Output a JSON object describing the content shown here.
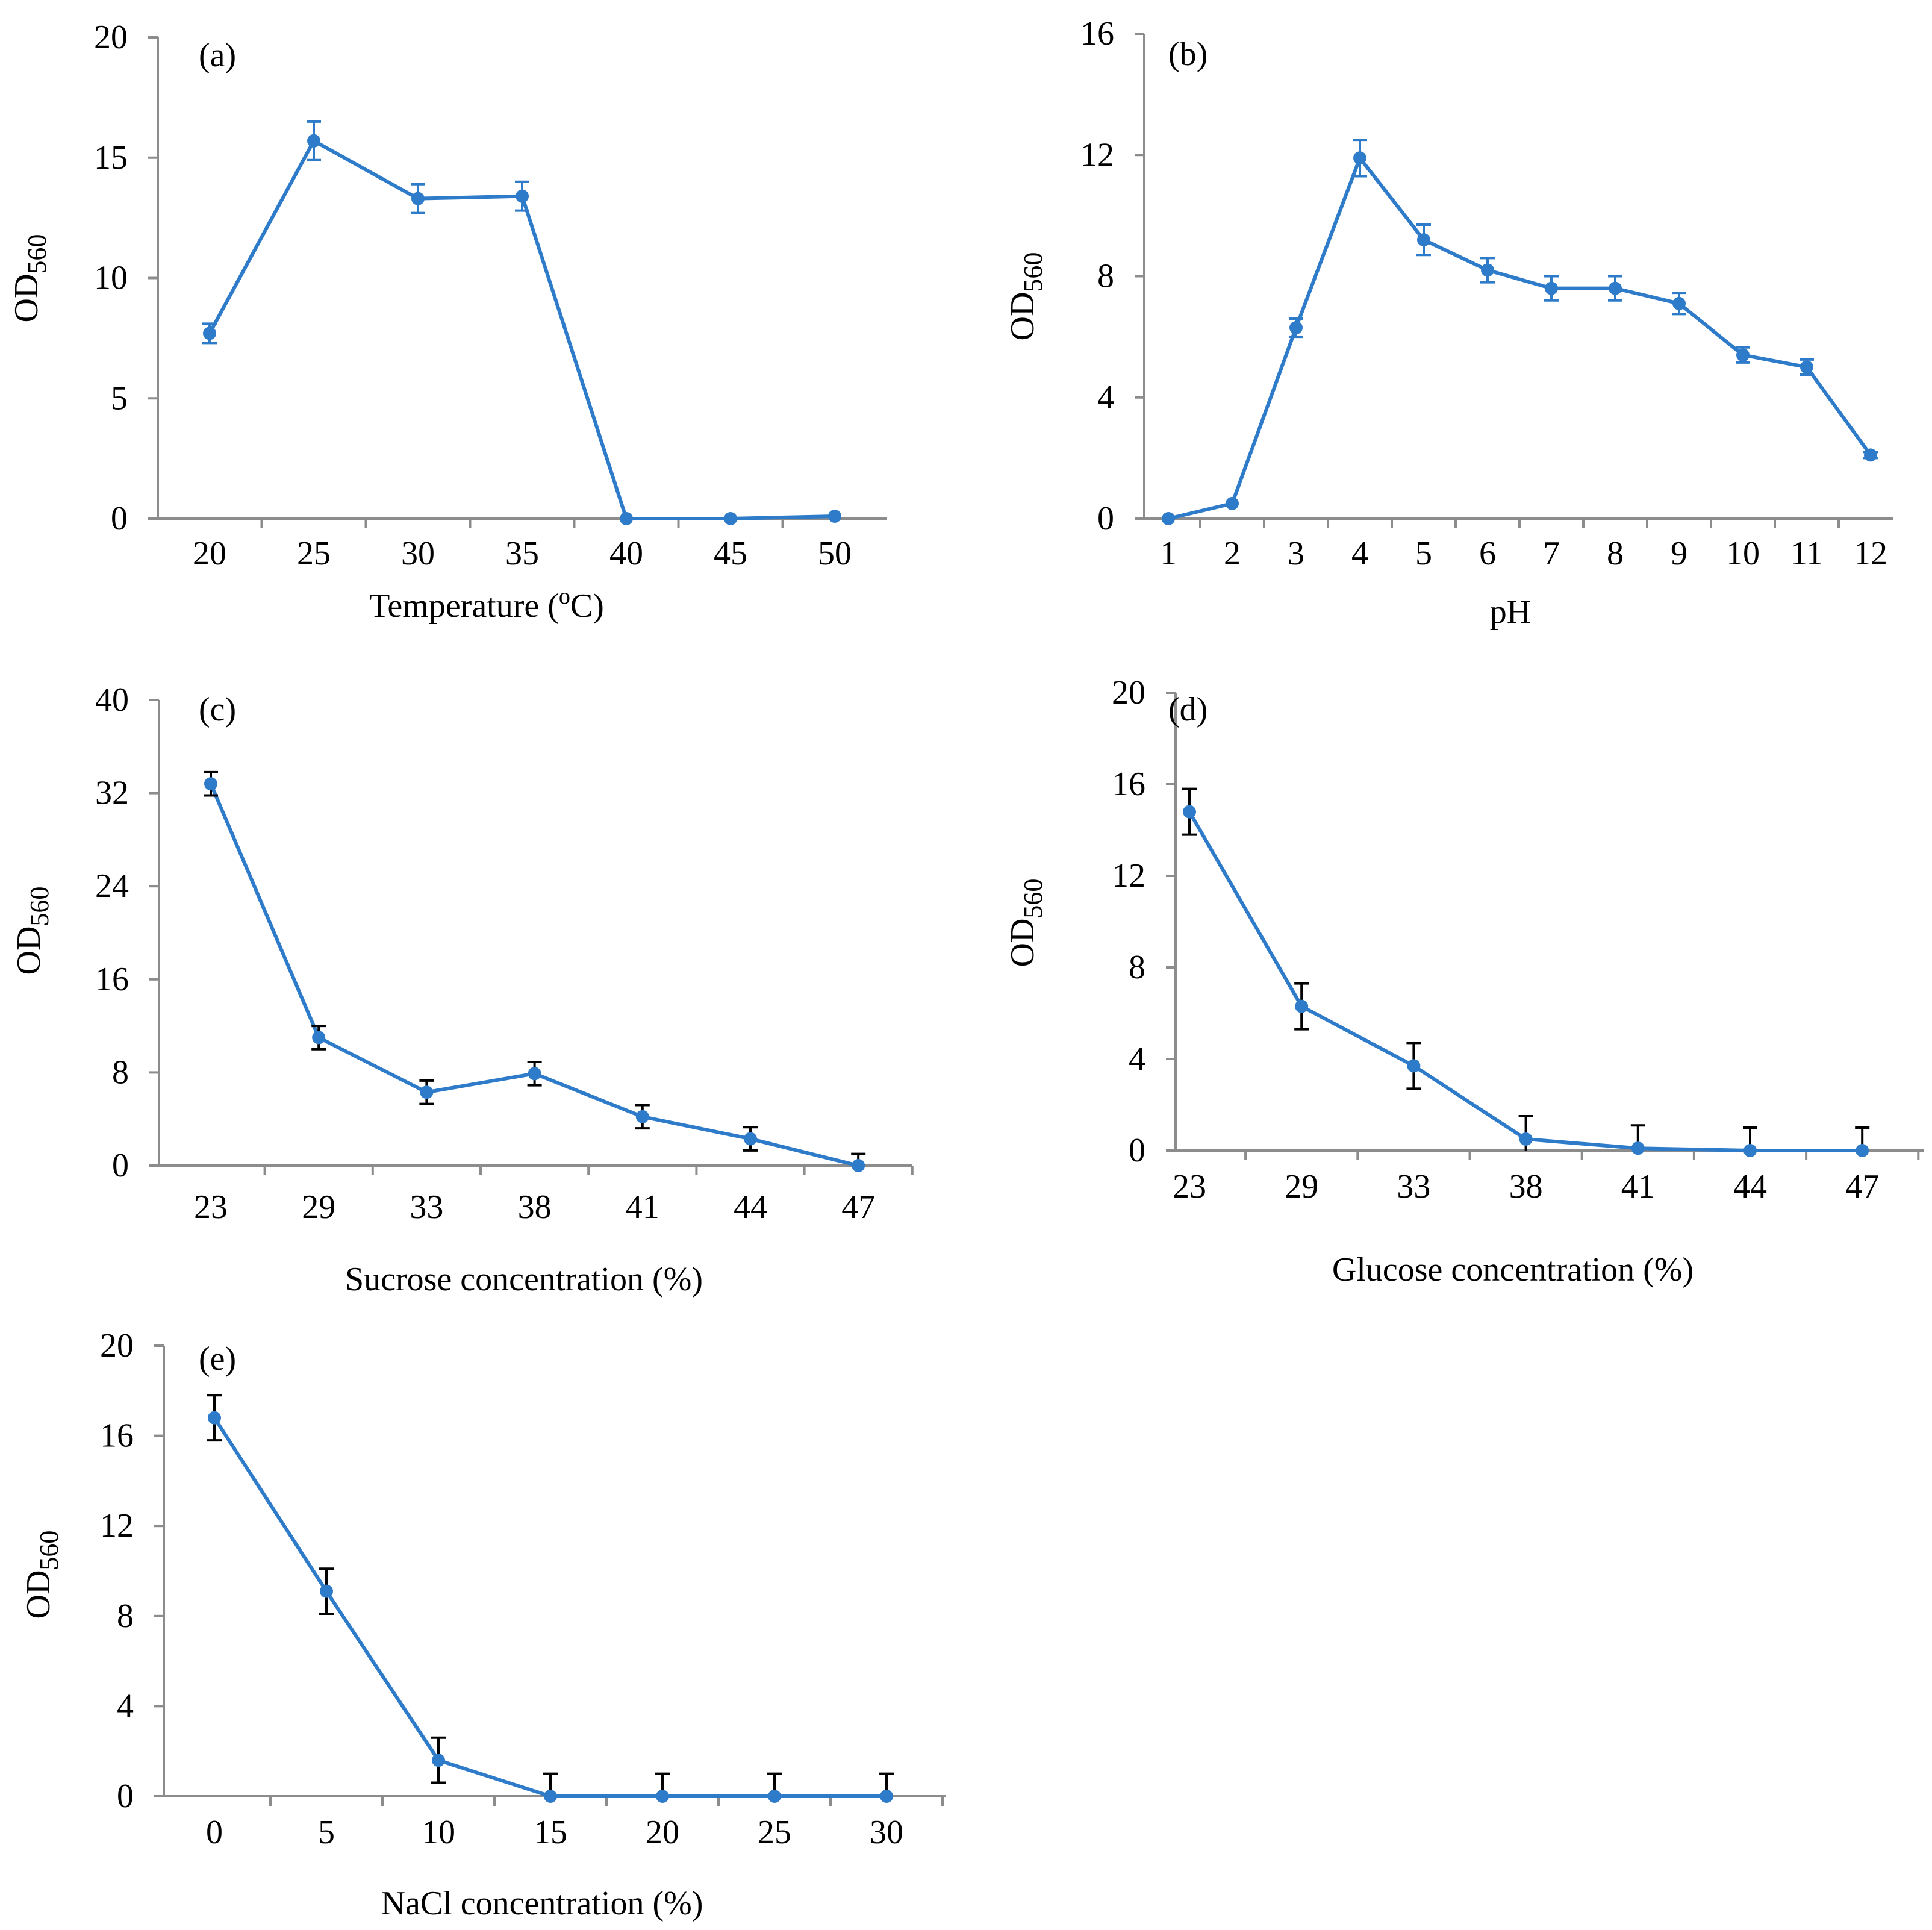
{
  "colors": {
    "series": "#2e7bc9",
    "axis": "#8c8c8c",
    "error_bar": "#000000"
  },
  "chart_data": [
    {
      "type": "line",
      "panel_label": "(a)",
      "xlabel": "Temperature (",
      "xlabel_sup": "o",
      "xlabel_tail": "C)",
      "ylabel": "OD",
      "ylabel_sub": "560",
      "categories": [
        "20",
        "25",
        "30",
        "35",
        "40",
        "45",
        "50"
      ],
      "values": [
        7.7,
        15.7,
        13.3,
        13.4,
        0.0,
        0.0,
        0.1
      ],
      "errors": [
        0.4,
        0.8,
        0.6,
        0.6,
        0,
        0,
        0
      ],
      "error_color": "#2e7bc9",
      "ylim": [
        0,
        20
      ],
      "yticks": [
        0,
        5,
        10,
        15,
        20
      ],
      "grid": false,
      "legend": "none"
    },
    {
      "type": "line",
      "panel_label": "(b)",
      "xlabel": "pH",
      "ylabel": "OD",
      "ylabel_sub": "560",
      "categories": [
        "1",
        "2",
        "3",
        "4",
        "5",
        "6",
        "7",
        "8",
        "9",
        "10",
        "11",
        "12"
      ],
      "values": [
        0.0,
        0.5,
        6.3,
        11.9,
        9.2,
        8.2,
        7.6,
        7.6,
        7.1,
        5.4,
        5.0,
        2.1
      ],
      "errors": [
        0,
        0,
        0.3,
        0.6,
        0.5,
        0.4,
        0.4,
        0.4,
        0.35,
        0.25,
        0.25,
        0.1
      ],
      "error_color": "#2e7bc9",
      "ylim": [
        0,
        16
      ],
      "yticks": [
        0,
        4,
        8,
        12,
        16
      ],
      "grid": false,
      "legend": "none"
    },
    {
      "type": "line",
      "panel_label": "(c)",
      "xlabel": "Sucrose concentration (%)",
      "ylabel": "OD",
      "ylabel_sub": "560",
      "categories": [
        "23",
        "29",
        "33",
        "38",
        "41",
        "44",
        "47"
      ],
      "values": [
        32.8,
        11.0,
        6.3,
        7.9,
        4.2,
        2.3,
        0.0
      ],
      "errors": [
        1.0,
        1.0,
        1.0,
        1.0,
        1.0,
        1.0,
        1.0
      ],
      "error_color": "#000000",
      "ylim": [
        0,
        40
      ],
      "yticks": [
        0,
        8,
        16,
        24,
        32,
        40
      ],
      "grid": false,
      "legend": "none"
    },
    {
      "type": "line",
      "panel_label": "(d)",
      "xlabel": "Glucose concentration (%)",
      "ylabel": "OD",
      "ylabel_sub": "560",
      "categories": [
        "23",
        "29",
        "33",
        "38",
        "41",
        "44",
        "47"
      ],
      "values": [
        14.8,
        6.3,
        3.7,
        0.5,
        0.1,
        0.0,
        0.0
      ],
      "errors": [
        1.0,
        1.0,
        1.0,
        1.0,
        1.0,
        1.0,
        1.0
      ],
      "error_color": "#000000",
      "ylim": [
        0,
        20
      ],
      "yticks": [
        0,
        4,
        8,
        12,
        16,
        20
      ],
      "grid": false,
      "legend": "none"
    },
    {
      "type": "line",
      "panel_label": "(e)",
      "xlabel": "NaCl concentration (%)",
      "ylabel": "OD",
      "ylabel_sub": "560",
      "categories": [
        "0",
        "5",
        "10",
        "15",
        "20",
        "25",
        "30"
      ],
      "values": [
        16.8,
        9.1,
        1.6,
        0.0,
        0.0,
        0.0,
        0.0
      ],
      "errors": [
        1.0,
        1.0,
        1.0,
        1.0,
        1.0,
        1.0,
        1.0
      ],
      "error_color": "#000000",
      "ylim": [
        0,
        20
      ],
      "yticks": [
        0,
        4,
        8,
        12,
        16,
        20
      ],
      "grid": false,
      "legend": "none"
    }
  ]
}
